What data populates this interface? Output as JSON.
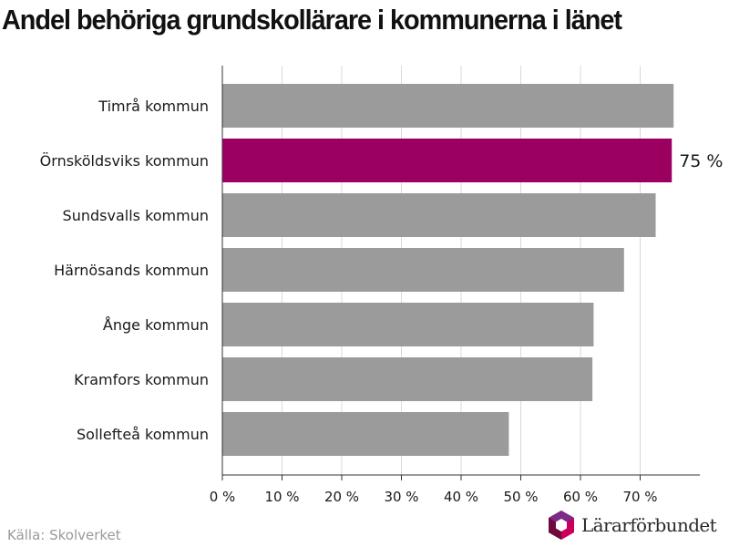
{
  "title": "Andel behöriga grundskollärare i kommunerna i länet",
  "source": "Källa: Skolverket",
  "logo_text": "Lärarförbundet",
  "colors": {
    "bar_default": "#9b9b9b",
    "bar_highlight": "#9b0061",
    "grid": "#d9d9d9",
    "axis": "#333333",
    "text": "#1a1a1a",
    "logo_pink": "#c8005a",
    "logo_dark": "#6e0a3c",
    "logo_purple": "#7b2b86"
  },
  "chart_data": {
    "type": "bar",
    "orientation": "horizontal",
    "categories": [
      "Timrå kommun",
      "Örnsköldsviks kommun",
      "Sundsvalls kommun",
      "Härnösands kommun",
      "Ånge kommun",
      "Kramfors kommun",
      "Sollefteå kommun"
    ],
    "values": [
      75.6,
      75.3,
      72.6,
      67.3,
      62.2,
      62.0,
      48.0
    ],
    "highlight_index": 1,
    "data_labels": [
      {
        "index": 1,
        "text": "75 %"
      }
    ],
    "xlim": [
      0,
      80
    ],
    "ticks": [
      0,
      10,
      20,
      30,
      40,
      50,
      60,
      70
    ],
    "tick_labels": [
      "0 %",
      "10 %",
      "20 %",
      "30 %",
      "40 %",
      "50 %",
      "60 %",
      "70 %"
    ],
    "grid": true,
    "xlabel": "",
    "ylabel": ""
  }
}
